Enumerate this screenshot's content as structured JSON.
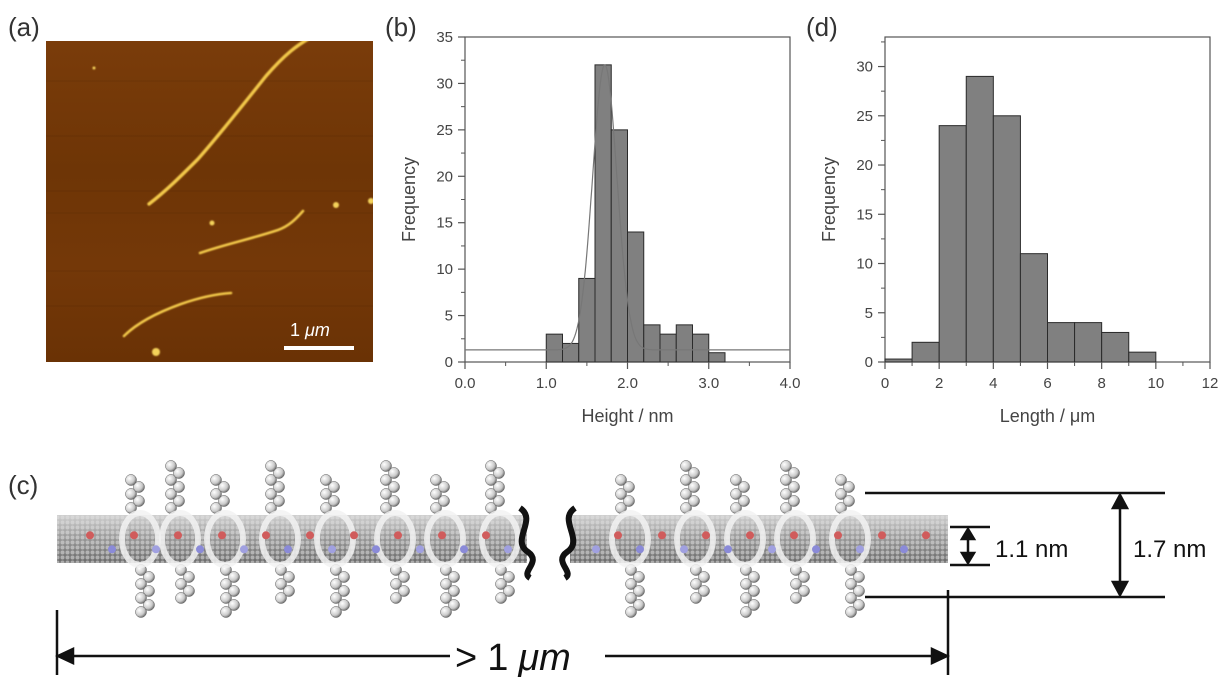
{
  "labels": {
    "a": "(a)",
    "b": "(b)",
    "c": "(c)",
    "d": "(d)"
  },
  "afm": {
    "scalebar_number": "1",
    "scalebar_unit": "μm"
  },
  "molecule": {
    "inner_dim": "1.1 nm",
    "outer_dim": "1.7 nm",
    "length_prefix": ">",
    "length_number": "1",
    "length_unit": "μm"
  },
  "chart_data": [
    {
      "id": "b",
      "type": "bar",
      "xlabel": "Height / nm",
      "ylabel": "Frequency",
      "xlim": [
        0.0,
        4.0
      ],
      "ylim": [
        0,
        35
      ],
      "xticks": [
        "0.0",
        "1.0",
        "2.0",
        "3.0",
        "4.0"
      ],
      "yticks": [
        "0",
        "5",
        "10",
        "15",
        "20",
        "25",
        "30",
        "35"
      ],
      "bin_width": 0.2,
      "bin_starts": [
        1.0,
        1.2,
        1.4,
        1.6,
        1.8,
        2.0,
        2.2,
        2.4,
        2.6,
        2.8,
        3.0
      ],
      "values": [
        3,
        2,
        9,
        32,
        25,
        14,
        4,
        3,
        4,
        3,
        1
      ],
      "fit": {
        "type": "gaussian",
        "peak_x": 1.72,
        "peak_y": 32,
        "sigma": 0.15,
        "baseline": 1.3
      },
      "bar_color": "#808080"
    },
    {
      "id": "d",
      "type": "bar",
      "xlabel": "Length / μm",
      "ylabel": "Frequency",
      "xlim": [
        0,
        12
      ],
      "ylim": [
        0,
        33
      ],
      "xticks": [
        "0",
        "2",
        "4",
        "6",
        "8",
        "10",
        "12"
      ],
      "yticks": [
        "0",
        "5",
        "10",
        "15",
        "20",
        "25",
        "30"
      ],
      "bin_width": 1,
      "bin_starts": [
        0,
        1,
        2,
        3,
        4,
        5,
        6,
        7,
        8,
        9
      ],
      "values": [
        0.3,
        2,
        24,
        29,
        25,
        11,
        4,
        4,
        3,
        1
      ],
      "bar_color": "#808080"
    }
  ]
}
